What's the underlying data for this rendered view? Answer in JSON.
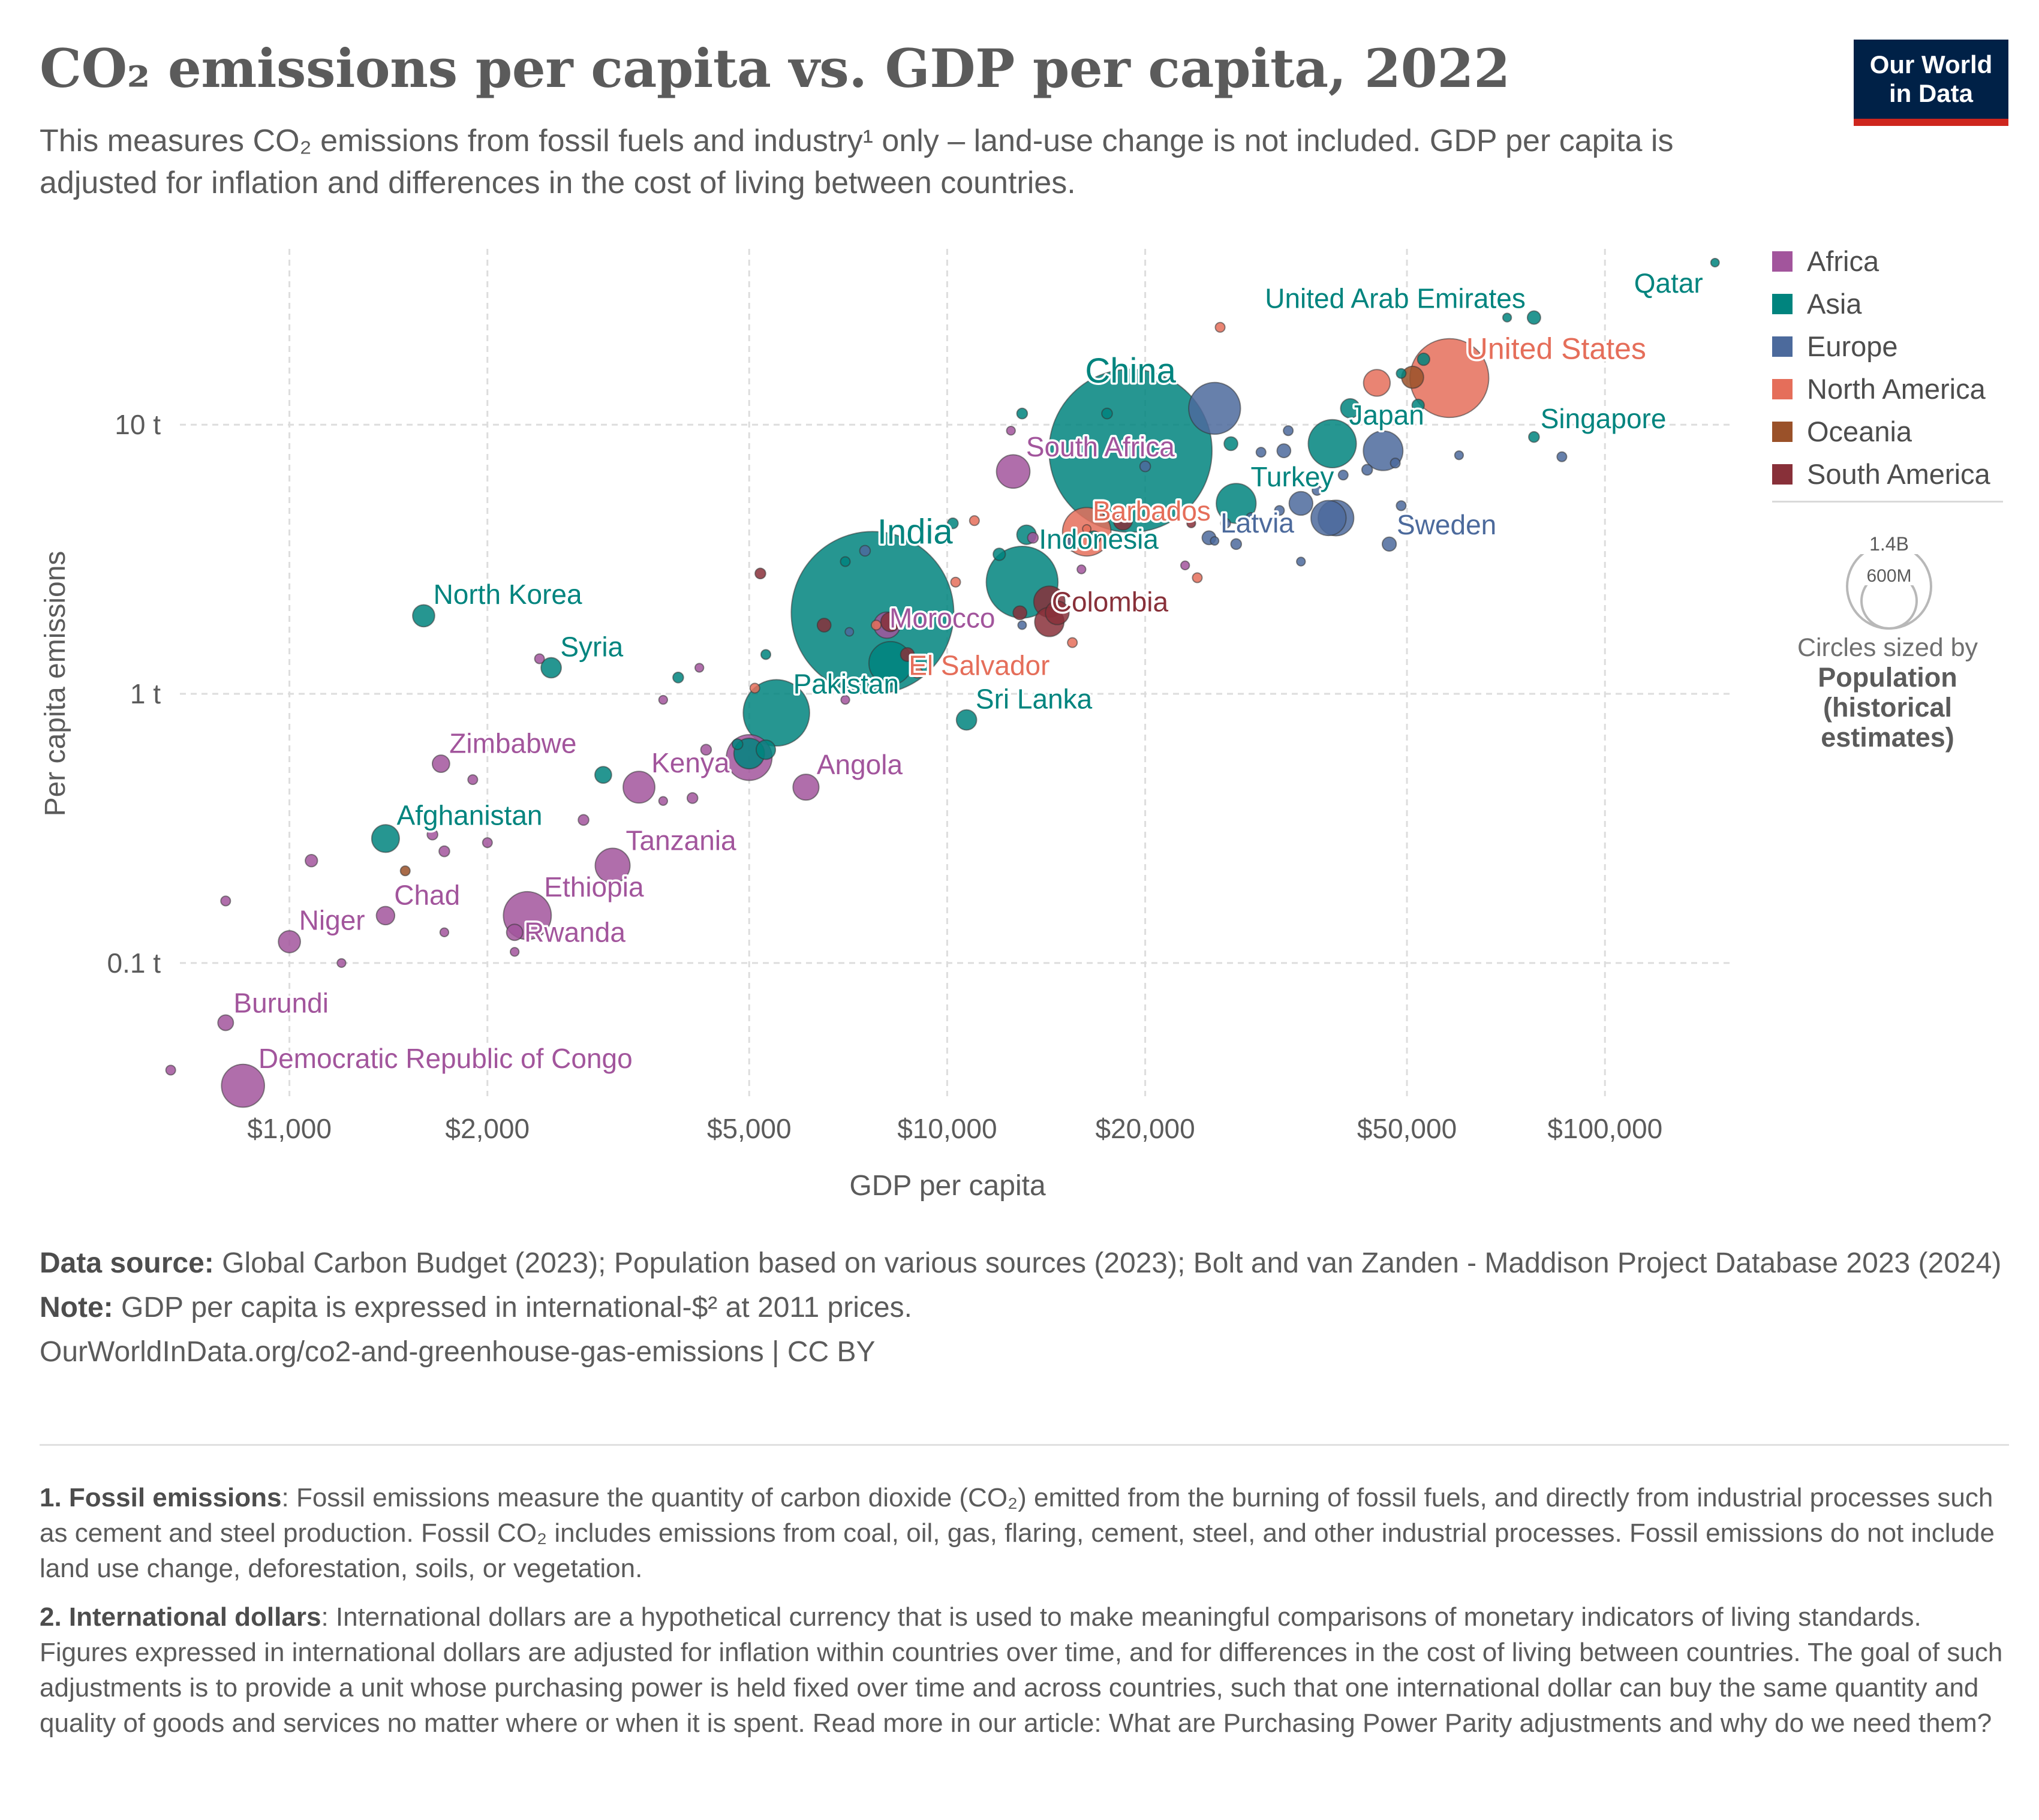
{
  "header": {
    "title": "CO₂ emissions per capita vs. GDP per capita, 2022",
    "subtitle": "This measures CO₂ emissions from fossil fuels and industry¹ only – land-use change is not included. GDP per capita is adjusted for inflation and differences in the cost of living between countries.",
    "logo_line1": "Our World",
    "logo_line2": "in Data"
  },
  "legend": {
    "items": [
      {
        "label": "Africa",
        "color": "#a2559c"
      },
      {
        "label": "Asia",
        "color": "#00847e"
      },
      {
        "label": "Europe",
        "color": "#4c6a9c"
      },
      {
        "label": "North America",
        "color": "#e56e5a"
      },
      {
        "label": "Oceania",
        "color": "#9a5129"
      },
      {
        "label": "South America",
        "color": "#883039"
      }
    ],
    "size_legend_large": "1.4B",
    "size_legend_small": "600M",
    "size_caption": "Circles sized by",
    "size_variable": "Population (historical estimates)"
  },
  "chart_data": {
    "type": "scatter",
    "xlabel": "GDP per capita",
    "ylabel": "Per capita emissions",
    "x_scale": "log",
    "y_scale": "log",
    "xlim": [
      640,
      155000
    ],
    "ylim": [
      0.032,
      45
    ],
    "x_ticks": [
      {
        "value": 1000,
        "label": "$1,000"
      },
      {
        "value": 2000,
        "label": "$2,000"
      },
      {
        "value": 5000,
        "label": "$5,000"
      },
      {
        "value": 10000,
        "label": "$10,000"
      },
      {
        "value": 20000,
        "label": "$20,000"
      },
      {
        "value": 50000,
        "label": "$50,000"
      },
      {
        "value": 100000,
        "label": "$100,000"
      }
    ],
    "y_ticks": [
      {
        "value": 0.1,
        "label": "0.1 t"
      },
      {
        "value": 1,
        "label": "1 t"
      },
      {
        "value": 10,
        "label": "10 t"
      }
    ],
    "grid": true,
    "legend_position": "right",
    "labeled_points": [
      {
        "label": "Qatar",
        "region": "Asia",
        "gdp": 147000,
        "co2": 40,
        "pop": 2.7
      },
      {
        "label": "United Arab Emirates",
        "region": "Asia",
        "gdp": 78000,
        "co2": 25,
        "pop": 9.4
      },
      {
        "label": "United States",
        "region": "North America",
        "gdp": 58000,
        "co2": 14.9,
        "pop": 333
      },
      {
        "label": "China",
        "region": "Asia",
        "gdp": 19000,
        "co2": 8.0,
        "pop": 1425
      },
      {
        "label": "Japan",
        "region": "Asia",
        "gdp": 38500,
        "co2": 8.5,
        "pop": 124
      },
      {
        "label": "Singapore",
        "region": "Asia",
        "gdp": 78000,
        "co2": 9.0,
        "pop": 6
      },
      {
        "label": "South Africa",
        "region": "Africa",
        "gdp": 12600,
        "co2": 6.7,
        "pop": 60
      },
      {
        "label": "Turkey",
        "region": "Asia",
        "gdp": 27500,
        "co2": 5.1,
        "pop": 85
      },
      {
        "label": "Barbados",
        "region": "North America",
        "gdp": 16300,
        "co2": 4.1,
        "pop": 0.3
      },
      {
        "label": "Latvia",
        "region": "Europe",
        "gdp": 25500,
        "co2": 3.7,
        "pop": 1.9
      },
      {
        "label": "Sweden",
        "region": "Europe",
        "gdp": 47000,
        "co2": 3.6,
        "pop": 10.5
      },
      {
        "label": "Indonesia",
        "region": "Asia",
        "gdp": 13000,
        "co2": 2.6,
        "pop": 276
      },
      {
        "label": "India",
        "region": "Asia",
        "gdp": 7700,
        "co2": 2.0,
        "pop": 1417
      },
      {
        "label": "Morocco",
        "region": "Africa",
        "gdp": 8100,
        "co2": 1.8,
        "pop": 37
      },
      {
        "label": "Colombia",
        "region": "South America",
        "gdp": 14300,
        "co2": 2.2,
        "pop": 52
      },
      {
        "label": "North Korea",
        "region": "Asia",
        "gdp": 1600,
        "co2": 1.95,
        "pop": 26
      },
      {
        "label": "Syria",
        "region": "Asia",
        "gdp": 2500,
        "co2": 1.25,
        "pop": 22
      },
      {
        "label": "El Salvador",
        "region": "North America",
        "gdp": 9000,
        "co2": 1.2,
        "pop": 6.3
      },
      {
        "label": "Pakistan",
        "region": "Asia",
        "gdp": 5500,
        "co2": 0.85,
        "pop": 236
      },
      {
        "label": "Sri Lanka",
        "region": "Asia",
        "gdp": 10700,
        "co2": 0.8,
        "pop": 22
      },
      {
        "label": "Zimbabwe",
        "region": "Africa",
        "gdp": 1700,
        "co2": 0.55,
        "pop": 16
      },
      {
        "label": "Kenya",
        "region": "Africa",
        "gdp": 3400,
        "co2": 0.45,
        "pop": 54
      },
      {
        "label": "Angola",
        "region": "Africa",
        "gdp": 6100,
        "co2": 0.45,
        "pop": 36
      },
      {
        "label": "Afghanistan",
        "region": "Asia",
        "gdp": 1400,
        "co2": 0.29,
        "pop": 41
      },
      {
        "label": "Tanzania",
        "region": "Africa",
        "gdp": 3100,
        "co2": 0.23,
        "pop": 65
      },
      {
        "label": "Ethiopia",
        "region": "Africa",
        "gdp": 2300,
        "co2": 0.15,
        "pop": 123
      },
      {
        "label": "Chad",
        "region": "Africa",
        "gdp": 1400,
        "co2": 0.15,
        "pop": 18
      },
      {
        "label": "Niger",
        "region": "Africa",
        "gdp": 1000,
        "co2": 0.12,
        "pop": 26
      },
      {
        "label": "Rwanda",
        "region": "Africa",
        "gdp": 2200,
        "co2": 0.13,
        "pop": 14
      },
      {
        "label": "Burundi",
        "region": "Africa",
        "gdp": 800,
        "co2": 0.06,
        "pop": 13
      },
      {
        "label": "Democratic Republic of Congo",
        "region": "Africa",
        "gdp": 850,
        "co2": 0.035,
        "pop": 99
      }
    ],
    "other_points": [
      {
        "region": "Africa",
        "gdp": 660,
        "co2": 0.04,
        "pop": 5
      },
      {
        "region": "Africa",
        "gdp": 800,
        "co2": 0.17,
        "pop": 5
      },
      {
        "region": "Africa",
        "gdp": 1080,
        "co2": 0.24,
        "pop": 8
      },
      {
        "region": "Africa",
        "gdp": 1200,
        "co2": 0.1,
        "pop": 4
      },
      {
        "region": "Africa",
        "gdp": 1650,
        "co2": 0.3,
        "pop": 6
      },
      {
        "region": "Africa",
        "gdp": 1720,
        "co2": 0.26,
        "pop": 6
      },
      {
        "region": "Africa",
        "gdp": 1720,
        "co2": 0.13,
        "pop": 4
      },
      {
        "region": "Africa",
        "gdp": 1900,
        "co2": 0.48,
        "pop": 5
      },
      {
        "region": "Africa",
        "gdp": 2000,
        "co2": 0.28,
        "pop": 5
      },
      {
        "region": "Africa",
        "gdp": 2200,
        "co2": 0.11,
        "pop": 4
      },
      {
        "region": "Africa",
        "gdp": 2400,
        "co2": 1.35,
        "pop": 5
      },
      {
        "region": "Africa",
        "gdp": 2800,
        "co2": 0.34,
        "pop": 6
      },
      {
        "region": "Africa",
        "gdp": 3700,
        "co2": 0.4,
        "pop": 4
      },
      {
        "region": "Africa",
        "gdp": 3700,
        "co2": 0.95,
        "pop": 4
      },
      {
        "region": "Africa",
        "gdp": 4100,
        "co2": 0.41,
        "pop": 6
      },
      {
        "region": "Africa",
        "gdp": 4300,
        "co2": 0.62,
        "pop": 6
      },
      {
        "region": "Africa",
        "gdp": 4200,
        "co2": 1.25,
        "pop": 4
      },
      {
        "region": "Africa",
        "gdp": 5000,
        "co2": 0.58,
        "pop": 112
      },
      {
        "region": "Africa",
        "gdp": 7000,
        "co2": 0.95,
        "pop": 4
      },
      {
        "region": "Africa",
        "gdp": 12500,
        "co2": 9.5,
        "pop": 4
      },
      {
        "region": "Africa",
        "gdp": 13500,
        "co2": 3.8,
        "pop": 6
      },
      {
        "region": "Africa",
        "gdp": 16000,
        "co2": 2.9,
        "pop": 4
      },
      {
        "region": "Africa",
        "gdp": 23000,
        "co2": 3.0,
        "pop": 4
      },
      {
        "region": "Asia",
        "gdp": 3000,
        "co2": 0.5,
        "pop": 15
      },
      {
        "region": "Asia",
        "gdp": 3900,
        "co2": 1.15,
        "pop": 6
      },
      {
        "region": "Asia",
        "gdp": 4800,
        "co2": 0.65,
        "pop": 6
      },
      {
        "region": "Asia",
        "gdp": 5000,
        "co2": 0.6,
        "pop": 50
      },
      {
        "region": "Asia",
        "gdp": 5300,
        "co2": 0.62,
        "pop": 20
      },
      {
        "region": "Asia",
        "gdp": 5300,
        "co2": 1.4,
        "pop": 5
      },
      {
        "region": "Asia",
        "gdp": 7000,
        "co2": 3.1,
        "pop": 5
      },
      {
        "region": "Asia",
        "gdp": 8200,
        "co2": 1.3,
        "pop": 100
      },
      {
        "region": "Asia",
        "gdp": 10200,
        "co2": 4.3,
        "pop": 6
      },
      {
        "region": "Asia",
        "gdp": 12000,
        "co2": 3.3,
        "pop": 8
      },
      {
        "region": "Asia",
        "gdp": 13000,
        "co2": 11,
        "pop": 6
      },
      {
        "region": "Asia",
        "gdp": 13200,
        "co2": 3.9,
        "pop": 20
      },
      {
        "region": "Asia",
        "gdp": 16700,
        "co2": 3.8,
        "pop": 10
      },
      {
        "region": "Asia",
        "gdp": 17500,
        "co2": 11,
        "pop": 6
      },
      {
        "region": "Asia",
        "gdp": 27000,
        "co2": 8.5,
        "pop": 10
      },
      {
        "region": "Asia",
        "gdp": 41000,
        "co2": 11.5,
        "pop": 20
      },
      {
        "region": "Asia",
        "gdp": 49000,
        "co2": 15.5,
        "pop": 5
      },
      {
        "region": "Asia",
        "gdp": 53000,
        "co2": 17.5,
        "pop": 8
      },
      {
        "region": "Asia",
        "gdp": 52000,
        "co2": 11.8,
        "pop": 8
      },
      {
        "region": "Asia",
        "gdp": 71000,
        "co2": 25,
        "pop": 4
      },
      {
        "region": "Europe",
        "gdp": 7500,
        "co2": 3.4,
        "pop": 6
      },
      {
        "region": "Europe",
        "gdp": 7100,
        "co2": 1.7,
        "pop": 3
      },
      {
        "region": "Europe",
        "gdp": 13000,
        "co2": 1.8,
        "pop": 3
      },
      {
        "region": "Europe",
        "gdp": 15500,
        "co2": 3.6,
        "pop": 10
      },
      {
        "region": "Europe",
        "gdp": 20000,
        "co2": 7,
        "pop": 6
      },
      {
        "region": "Europe",
        "gdp": 25500,
        "co2": 11.5,
        "pop": 144
      },
      {
        "region": "Europe",
        "gdp": 25000,
        "co2": 3.8,
        "pop": 10
      },
      {
        "region": "Europe",
        "gdp": 26500,
        "co2": 4.3,
        "pop": 5
      },
      {
        "region": "Europe",
        "gdp": 27500,
        "co2": 3.6,
        "pop": 6
      },
      {
        "region": "Europe",
        "gdp": 29000,
        "co2": 4.5,
        "pop": 6
      },
      {
        "region": "Europe",
        "gdp": 30000,
        "co2": 7.9,
        "pop": 5
      },
      {
        "region": "Europe",
        "gdp": 32000,
        "co2": 4.8,
        "pop": 5
      },
      {
        "region": "Europe",
        "gdp": 32500,
        "co2": 8.0,
        "pop": 10
      },
      {
        "region": "Europe",
        "gdp": 33000,
        "co2": 9.5,
        "pop": 5
      },
      {
        "region": "Europe",
        "gdp": 34500,
        "co2": 5.1,
        "pop": 30
      },
      {
        "region": "Europe",
        "gdp": 34500,
        "co2": 3.1,
        "pop": 4
      },
      {
        "region": "Europe",
        "gdp": 36500,
        "co2": 5.7,
        "pop": 5
      },
      {
        "region": "Europe",
        "gdp": 38000,
        "co2": 4.5,
        "pop": 66
      },
      {
        "region": "Europe",
        "gdp": 39000,
        "co2": 4.5,
        "pop": 68
      },
      {
        "region": "Europe",
        "gdp": 40000,
        "co2": 6.5,
        "pop": 5
      },
      {
        "region": "Europe",
        "gdp": 43500,
        "co2": 6.8,
        "pop": 6
      },
      {
        "region": "Europe",
        "gdp": 46000,
        "co2": 8.0,
        "pop": 84
      },
      {
        "region": "Europe",
        "gdp": 48000,
        "co2": 7.2,
        "pop": 5
      },
      {
        "region": "Europe",
        "gdp": 49000,
        "co2": 5.0,
        "pop": 5
      },
      {
        "region": "Europe",
        "gdp": 60000,
        "co2": 7.7,
        "pop": 4
      },
      {
        "region": "Europe",
        "gdp": 86000,
        "co2": 7.6,
        "pop": 5
      },
      {
        "region": "North America",
        "gdp": 5100,
        "co2": 1.05,
        "pop": 5
      },
      {
        "region": "North America",
        "gdp": 7800,
        "co2": 1.8,
        "pop": 5
      },
      {
        "region": "North America",
        "gdp": 10300,
        "co2": 2.6,
        "pop": 5
      },
      {
        "region": "North America",
        "gdp": 11000,
        "co2": 4.4,
        "pop": 5
      },
      {
        "region": "North America",
        "gdp": 15500,
        "co2": 1.55,
        "pop": 5
      },
      {
        "region": "North America",
        "gdp": 16300,
        "co2": 4.0,
        "pop": 126
      },
      {
        "region": "North America",
        "gdp": 24000,
        "co2": 2.7,
        "pop": 5
      },
      {
        "region": "North America",
        "gdp": 26000,
        "co2": 23,
        "pop": 5
      },
      {
        "region": "North America",
        "gdp": 45000,
        "co2": 14.3,
        "pop": 38
      },
      {
        "region": "Oceania",
        "gdp": 1500,
        "co2": 0.22,
        "pop": 5
      },
      {
        "region": "Oceania",
        "gdp": 51000,
        "co2": 15.0,
        "pop": 26
      },
      {
        "region": "South America",
        "gdp": 5200,
        "co2": 2.8,
        "pop": 6
      },
      {
        "region": "South America",
        "gdp": 6500,
        "co2": 1.8,
        "pop": 10
      },
      {
        "region": "South America",
        "gdp": 8200,
        "co2": 1.85,
        "pop": 20
      },
      {
        "region": "South America",
        "gdp": 8700,
        "co2": 1.4,
        "pop": 10
      },
      {
        "region": "South America",
        "gdp": 12900,
        "co2": 2.0,
        "pop": 10
      },
      {
        "region": "South America",
        "gdp": 14300,
        "co2": 1.85,
        "pop": 46
      },
      {
        "region": "South America",
        "gdp": 14700,
        "co2": 2.0,
        "pop": 30
      },
      {
        "region": "South America",
        "gdp": 18500,
        "co2": 4.4,
        "pop": 19
      },
      {
        "region": "South America",
        "gdp": 23500,
        "co2": 4.3,
        "pop": 4
      }
    ]
  },
  "footer": {
    "source_label": "Data source:",
    "source_text": "Global Carbon Budget (2023); Population based on various sources (2023); Bolt and van Zanden - Maddison Project Database 2023 (2024)",
    "note_label": "Note:",
    "note_text": "GDP per capita is expressed in international-$² at 2011 prices.",
    "url_text": "OurWorldInData.org/co2-and-greenhouse-gas-emissions | CC BY",
    "footnote1_label": "1. Fossil emissions",
    "footnote1_text": ": Fossil emissions measure the quantity of carbon dioxide (CO₂) emitted from the burning of fossil fuels, and directly from industrial processes such as cement and steel production. Fossil CO₂ includes emissions from coal, oil, gas, flaring, cement, steel, and other industrial processes. Fossil emissions do not include land use change, deforestation, soils, or vegetation.",
    "footnote2_label": "2. International dollars",
    "footnote2_text": ": International dollars are a hypothetical currency that is used to make meaningful comparisons of monetary indicators of living standards. Figures expressed in international dollars are adjusted for inflation within countries over time, and for differences in the cost of living between countries. The goal of such adjustments is to provide a unit whose purchasing power is held fixed over time and across countries, such that one international dollar can buy the same quantity and quality of goods and services no matter where or when it is spent. Read more in our article: What are Purchasing Power Parity adjustments and why do we need them?"
  }
}
